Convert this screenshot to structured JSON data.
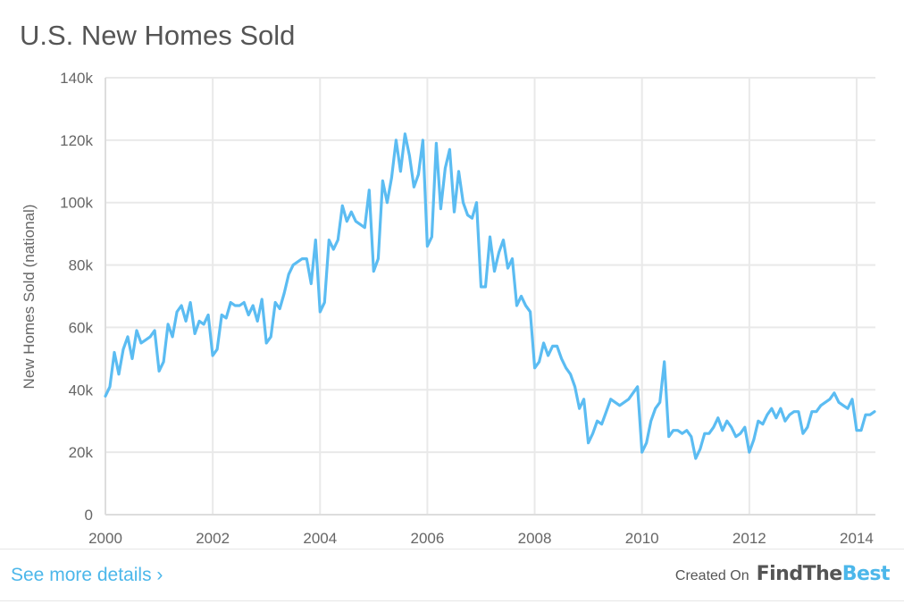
{
  "header": {
    "title": "U.S. New Homes Sold"
  },
  "footer": {
    "see_more": "See more details ›",
    "created_on": "Created On",
    "brand_part1": "FindThe",
    "brand_part2": "Best"
  },
  "colors": {
    "line": "#5bbcf2",
    "grid": "#e9e9e9",
    "text": "#666666",
    "accent": "#4cb7ea"
  },
  "chart_data": {
    "type": "line",
    "title": "U.S. New Homes Sold",
    "ylabel": "New Homes Sold (national)",
    "xlabel": "",
    "xlim": [
      2000,
      2014.35
    ],
    "ylim": [
      0,
      140000
    ],
    "x_ticks": [
      2000,
      2002,
      2004,
      2006,
      2008,
      2010,
      2012,
      2014
    ],
    "x_tick_labels": [
      "2000",
      "2002",
      "2004",
      "2006",
      "2008",
      "2010",
      "2012",
      "2014"
    ],
    "y_ticks": [
      0,
      20000,
      40000,
      60000,
      80000,
      100000,
      120000,
      140000
    ],
    "y_tick_labels": [
      "0",
      "20k",
      "40k",
      "60k",
      "80k",
      "100k",
      "120k",
      "140k"
    ],
    "grid": true,
    "legend": "none",
    "series": [
      {
        "start": "2000-01",
        "interval": "monthly",
        "values": [
          38000,
          41000,
          52000,
          45000,
          53000,
          57000,
          50000,
          59000,
          55000,
          56000,
          57000,
          59000,
          46000,
          49000,
          61000,
          57000,
          65000,
          67000,
          62000,
          68000,
          58000,
          62000,
          61000,
          64000,
          51000,
          53000,
          64000,
          63000,
          68000,
          67000,
          67000,
          68000,
          64000,
          67000,
          62000,
          69000,
          55000,
          57000,
          68000,
          66000,
          71000,
          77000,
          80000,
          81000,
          82000,
          82000,
          74000,
          88000,
          65000,
          68000,
          88000,
          85000,
          88000,
          99000,
          94000,
          97000,
          94000,
          93000,
          92000,
          104000,
          78000,
          82000,
          107000,
          100000,
          108000,
          120000,
          110000,
          122000,
          115000,
          105000,
          109000,
          120000,
          86000,
          89000,
          119000,
          98000,
          111000,
          117000,
          97000,
          110000,
          100000,
          96000,
          95000,
          100000,
          73000,
          73000,
          89000,
          78000,
          84000,
          88000,
          79000,
          82000,
          67000,
          70000,
          67000,
          65000,
          47000,
          49000,
          55000,
          51000,
          54000,
          54000,
          50000,
          47000,
          45000,
          41000,
          34000,
          37000,
          23000,
          26000,
          30000,
          29000,
          33000,
          37000,
          36000,
          35000,
          36000,
          37000,
          39000,
          41000,
          20000,
          23000,
          30000,
          34000,
          36000,
          49000,
          25000,
          27000,
          27000,
          26000,
          27000,
          25000,
          18000,
          21000,
          26000,
          26000,
          28000,
          31000,
          27000,
          30000,
          28000,
          25000,
          26000,
          28000,
          20000,
          24000,
          30000,
          29000,
          32000,
          34000,
          31000,
          34000,
          30000,
          32000,
          33000,
          33000,
          26000,
          28000,
          33000,
          33000,
          35000,
          36000,
          37000,
          39000,
          36000,
          35000,
          34000,
          37000,
          27000,
          27000,
          32000,
          32000,
          33000
        ]
      }
    ]
  }
}
